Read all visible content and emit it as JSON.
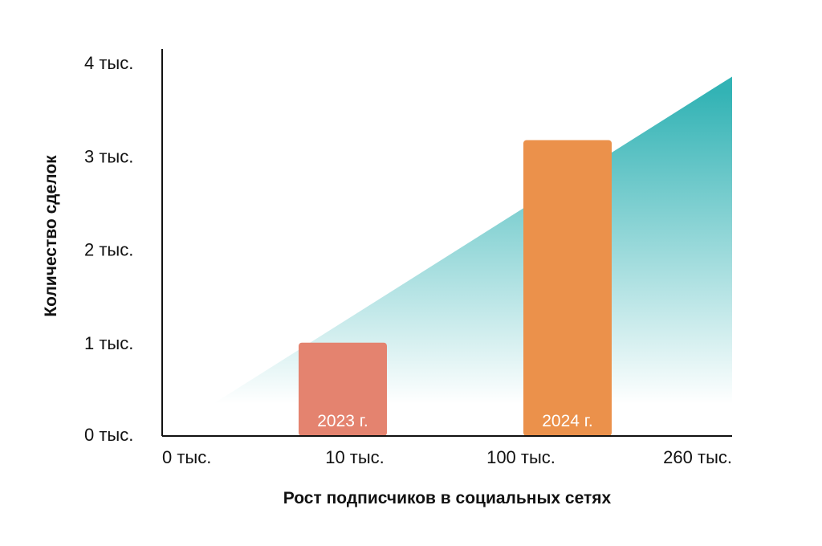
{
  "chart_data": {
    "type": "bar",
    "xlabel": "Рост подписчиков в социальных сетях",
    "ylabel": "Количество сделок",
    "x_tick_labels": [
      "0 тыс.",
      "10 тыс.",
      "100 тыс.",
      "260 тыс."
    ],
    "y_tick_labels": [
      "0 тыс.",
      "1 тыс.",
      "2 тыс.",
      "3 тыс.",
      "4 тыс."
    ],
    "y_ticks": [
      0,
      1000,
      2000,
      3000,
      4000
    ],
    "ylim": [
      0,
      4000
    ],
    "grid": false,
    "bars": [
      {
        "label": "2023 г.",
        "value": 1000,
        "color": "#e4836f"
      },
      {
        "label": "2024 г.",
        "value": 3170,
        "color": "#eb914b"
      }
    ],
    "trend_area": {
      "start_value": 0,
      "end_value": 3850,
      "color": "#33b3b5"
    },
    "axis_color": "#111111"
  }
}
